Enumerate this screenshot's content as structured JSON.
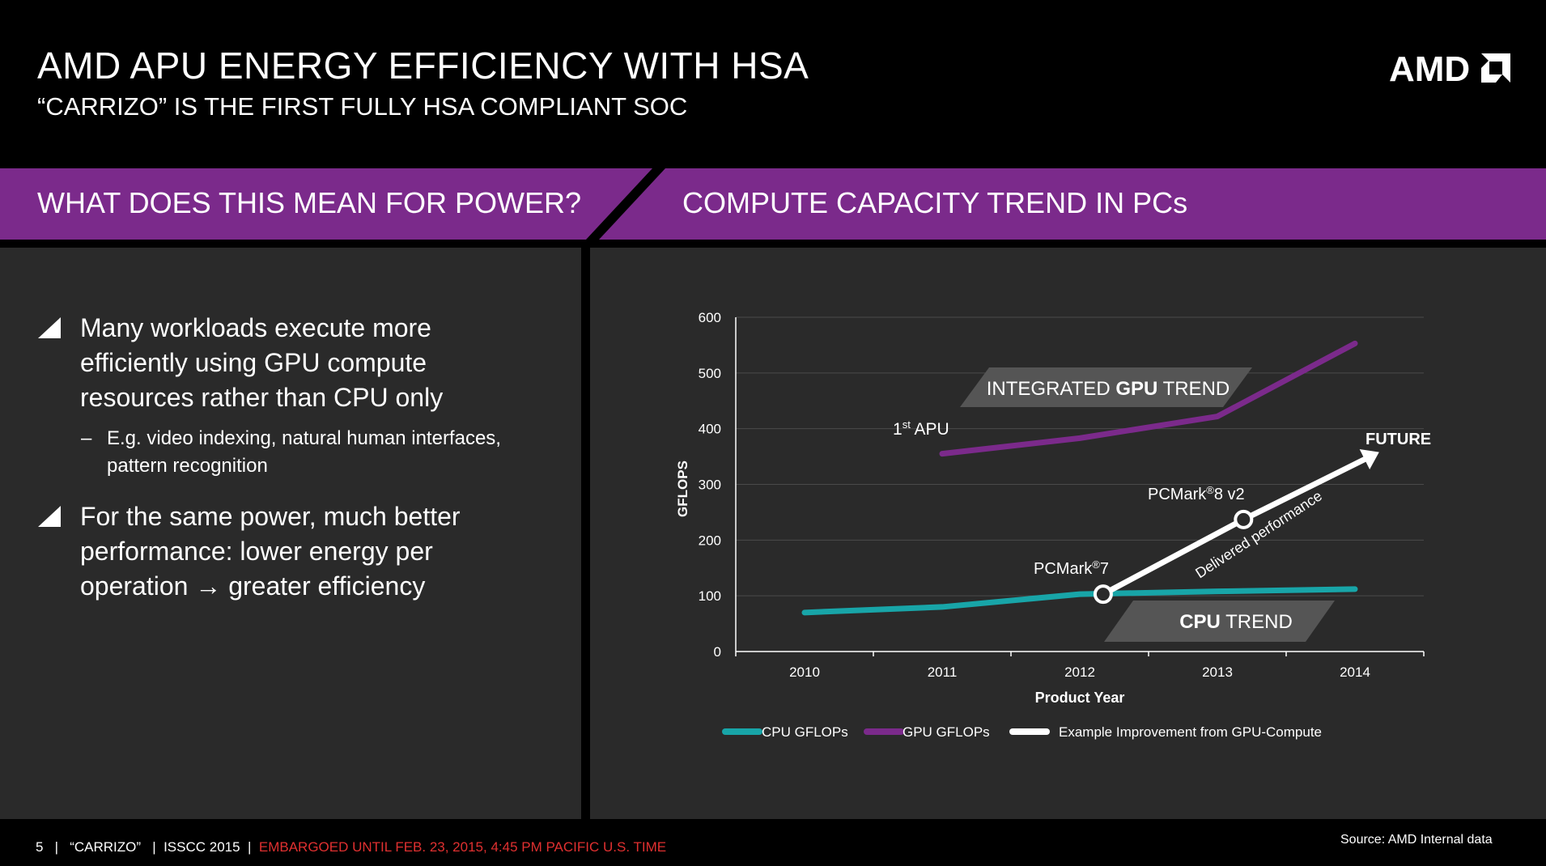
{
  "header": {
    "title": "AMD APU ENERGY EFFICIENCY WITH HSA",
    "subtitle": "“CARRIZO” IS THE FIRST FULLY HSA COMPLIANT SOC",
    "logo_text": "AMD"
  },
  "band": {
    "left": "WHAT DOES THIS MEAN FOR POWER?",
    "right": "COMPUTE CAPACITY TREND IN PCs"
  },
  "bullets": [
    {
      "lines": [
        "Many workloads execute more",
        "efficiently using GPU compute",
        "resources rather than CPU only"
      ]
    },
    {
      "lines": [
        "For the same power, much better",
        "performance: lower energy per",
        "operation → greater efficiency"
      ]
    }
  ],
  "sub_bullet": {
    "dash": "–",
    "lines": [
      "E.g. video indexing, natural human interfaces,",
      "pattern recognition"
    ]
  },
  "chart_data": {
    "type": "line",
    "xlabel": "Product Year",
    "ylabel": "GFLOPS",
    "x": [
      "2010",
      "2011",
      "2012",
      "2013",
      "2014"
    ],
    "y_ticks": [
      "0",
      "100",
      "200",
      "300",
      "400",
      "500",
      "600"
    ],
    "ylim": [
      0,
      600
    ],
    "grid": true,
    "series": [
      {
        "name": "CPU GFLOPs",
        "color": "#18a5a8",
        "points": [
          [
            2010,
            70
          ],
          [
            2011,
            80
          ],
          [
            2012,
            103
          ],
          [
            2013,
            108
          ],
          [
            2014,
            112
          ]
        ]
      },
      {
        "name": "GPU GFLOPs",
        "color": "#7b2a8b",
        "points": [
          [
            2011,
            355
          ],
          [
            2012,
            383
          ],
          [
            2013,
            422
          ],
          [
            2014,
            553
          ]
        ]
      },
      {
        "name": "Example Improvement from GPU-Compute",
        "color": "#ffffff",
        "points": [
          [
            2012.17,
            103
          ],
          [
            2013.19,
            237
          ],
          [
            2014.07,
            345
          ]
        ]
      }
    ],
    "annotations": {
      "gpu_trend_pre": "INTEGRATED ",
      "gpu_trend_bold": "GPU",
      "gpu_trend_post": " TREND",
      "cpu_trend_bold": "CPU",
      "cpu_trend_post": " TREND",
      "first_apu_num": "1",
      "first_apu_sup": "st",
      "first_apu_post": " APU",
      "future": "FUTURE",
      "pcmark7_pre": "PCMark",
      "pcmark7_sup": "®",
      "pcmark7_post": "7",
      "pcmark8_pre": "PCMark",
      "pcmark8_sup": "®",
      "pcmark8_post": "8 v2",
      "delivered": "Delivered performance"
    },
    "legend_position": "bottom"
  },
  "footer": {
    "left": "5   |   “CARRIZO”   |  ISSCC 2015  |  ",
    "embargo": "EMBARGOED UNTIL FEB. 23, 2015, 4:45 PM PACIFIC U.S. TIME",
    "source": "Source: AMD Internal data"
  },
  "colors": {
    "purple_band": "#7b2a8b",
    "panel": "#2a2a2a",
    "cpu": "#18a5a8",
    "gpu": "#7b2a8b",
    "embargo": "#e03030"
  }
}
